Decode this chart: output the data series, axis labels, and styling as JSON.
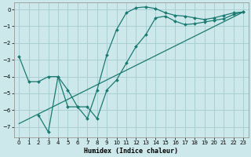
{
  "xlabel": "Humidex (Indice chaleur)",
  "bg_color": "#cce8ea",
  "grid_color": "#aad0d4",
  "line_color": "#1a7a72",
  "xlim": [
    -0.5,
    23.5
  ],
  "ylim": [
    -7.6,
    0.4
  ],
  "xticks": [
    0,
    1,
    2,
    3,
    4,
    5,
    6,
    7,
    8,
    9,
    10,
    11,
    12,
    13,
    14,
    15,
    16,
    17,
    18,
    19,
    20,
    21,
    22,
    23
  ],
  "yticks": [
    0,
    -1,
    -2,
    -3,
    -4,
    -5,
    -6,
    -7
  ],
  "line1_x": [
    0,
    1,
    2,
    3,
    4,
    5,
    6,
    7,
    8,
    9,
    10,
    11,
    12,
    13,
    14,
    15,
    16,
    17,
    18,
    19,
    20,
    21,
    22,
    23
  ],
  "line1_y": [
    -2.8,
    -4.3,
    -4.3,
    -4.0,
    -4.0,
    -5.8,
    -5.8,
    -6.5,
    -4.8,
    -2.7,
    -1.2,
    -0.2,
    0.1,
    0.15,
    0.05,
    -0.2,
    -0.35,
    -0.4,
    -0.5,
    -0.6,
    -0.5,
    -0.35,
    -0.2,
    -0.15
  ],
  "line2_x": [
    2,
    3,
    4,
    5,
    6,
    7,
    8,
    9,
    10,
    11,
    12,
    13,
    14,
    15,
    16,
    17,
    18,
    19,
    20,
    21,
    22,
    23
  ],
  "line2_y": [
    -6.3,
    -7.3,
    -4.0,
    -4.8,
    -5.8,
    -5.8,
    -6.5,
    -4.8,
    -4.2,
    -3.2,
    -2.2,
    -1.5,
    -0.5,
    -0.4,
    -0.7,
    -0.9,
    -0.85,
    -0.75,
    -0.65,
    -0.55,
    -0.3,
    -0.15
  ],
  "line3_x": [
    0,
    23
  ],
  "line3_y": [
    -6.8,
    -0.15
  ]
}
